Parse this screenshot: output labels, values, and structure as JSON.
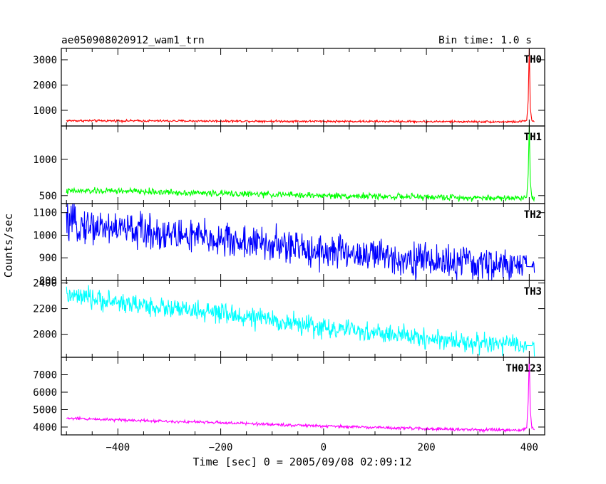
{
  "header": {
    "title": "ae050908020912_wam1_trn",
    "bin_time": "Bin time: 1.0 s"
  },
  "chart_data": {
    "type": "line",
    "xlabel": "Time [sec] 0 = 2005/09/08 02:09:12",
    "ylabel": "Counts/sec",
    "xlim": [
      -510,
      430
    ],
    "xticks": [
      -400,
      -200,
      0,
      200,
      400
    ],
    "grid": false,
    "panels": [
      {
        "name": "TH0",
        "color": "#ff0000",
        "ylim": [
          380,
          3450
        ],
        "yticks": [
          1000,
          2000,
          3000
        ],
        "ytick_labels": [
          "1000",
          "2000",
          "3000"
        ],
        "series": {
          "x": [
            -500,
            -400,
            -300,
            -200,
            -100,
            0,
            100,
            200,
            300,
            380,
            395,
            398,
            400,
            402,
            405,
            410
          ],
          "y": [
            590,
            585,
            580,
            575,
            570,
            565,
            560,
            555,
            550,
            545,
            600,
            1400,
            3450,
            1100,
            600,
            540
          ]
        },
        "noise": 30
      },
      {
        "name": "TH1",
        "color": "#00ff00",
        "ylim": [
          390,
          1460
        ],
        "yticks": [
          500,
          1000
        ],
        "ytick_labels": [
          "500",
          "1000"
        ],
        "series": {
          "x": [
            -500,
            -400,
            -300,
            -200,
            -100,
            0,
            100,
            200,
            300,
            380,
            395,
            398,
            400,
            402,
            405,
            410
          ],
          "y": [
            560,
            565,
            545,
            530,
            515,
            500,
            490,
            480,
            470,
            465,
            480,
            800,
            1460,
            700,
            480,
            465
          ]
        },
        "noise": 30
      },
      {
        "name": "TH2",
        "color": "#0000ff",
        "ylim": [
          800,
          1140
        ],
        "yticks": [
          800,
          900,
          1000,
          1100
        ],
        "ytick_labels": [
          "800",
          "900",
          "1000",
          "1100"
        ],
        "series": {
          "x": [
            -500,
            -400,
            -300,
            -200,
            -100,
            0,
            100,
            200,
            300,
            410
          ],
          "y": [
            1050,
            1030,
            1005,
            980,
            955,
            930,
            910,
            890,
            870,
            860
          ]
        },
        "noise": 55
      },
      {
        "name": "TH3",
        "color": "#00ffff",
        "ylim": [
          1820,
          2420
        ],
        "yticks": [
          2000,
          2200,
          2400
        ],
        "ytick_labels": [
          "2000",
          "2200",
          "2400"
        ],
        "series": {
          "x": [
            -500,
            -400,
            -300,
            -200,
            -100,
            0,
            100,
            200,
            300,
            410
          ],
          "y": [
            2300,
            2250,
            2200,
            2160,
            2110,
            2050,
            2010,
            1970,
            1930,
            1910
          ]
        },
        "noise": 55
      },
      {
        "name": "TH0123",
        "color": "#ff00ff",
        "ylim": [
          3550,
          8000
        ],
        "yticks": [
          4000,
          5000,
          6000,
          7000
        ],
        "ytick_labels": [
          "4000",
          "5000",
          "6000",
          "7000"
        ],
        "series": {
          "x": [
            -500,
            -400,
            -300,
            -200,
            -100,
            0,
            100,
            200,
            300,
            380,
            395,
            398,
            400,
            402,
            405,
            410
          ],
          "y": [
            4500,
            4420,
            4330,
            4250,
            4150,
            4050,
            3980,
            3900,
            3840,
            3810,
            3950,
            5500,
            8000,
            5000,
            3950,
            3820
          ]
        },
        "noise": 60
      }
    ]
  }
}
